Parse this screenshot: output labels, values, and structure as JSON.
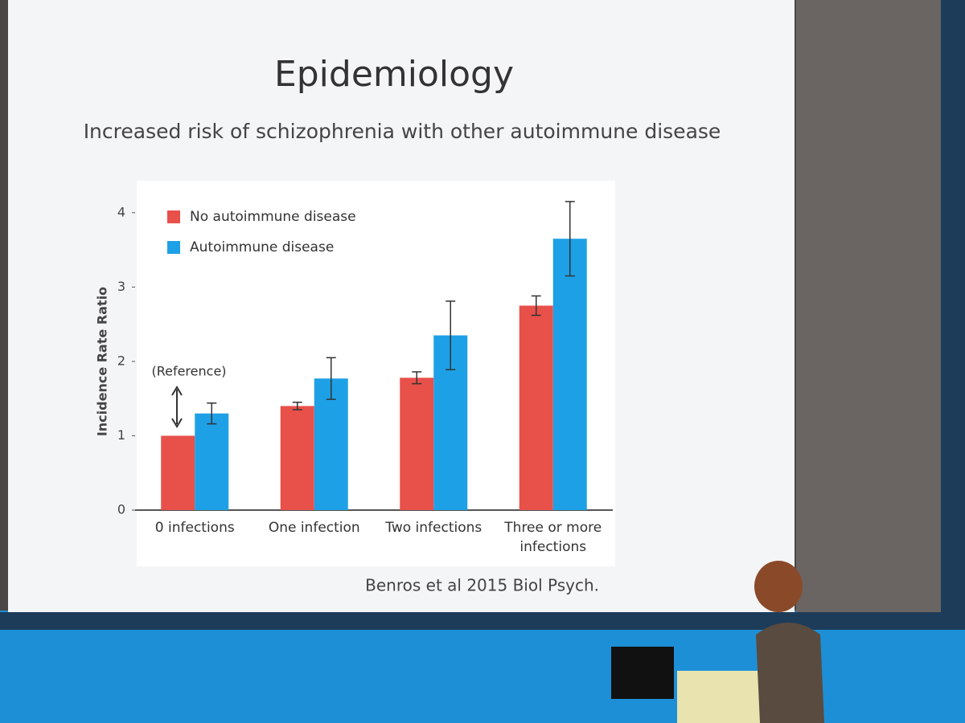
{
  "chart_data": {
    "type": "bar",
    "title": "Epidemiology",
    "subtitle": "Increased risk of schizophrenia with other autoimmune disease",
    "y_label": "Incidence Rate Ratio",
    "annotation": "(Reference)",
    "source": "Benros et al 2015 Biol Psych.",
    "categories": [
      "0 infections",
      "One infection",
      "Two infections",
      "Three or more infections"
    ],
    "series": [
      {
        "name": "No autoimmune disease",
        "color": "#e8504a",
        "values": [
          1.0,
          1.4,
          1.78,
          2.75
        ],
        "errors": [
          null,
          0.05,
          0.08,
          0.13
        ]
      },
      {
        "name": "Autoimmune disease",
        "color": "#1ea0e6",
        "values": [
          1.3,
          1.77,
          2.35,
          3.65
        ],
        "errors": [
          0.14,
          0.28,
          0.46,
          0.5
        ]
      }
    ],
    "ylim": [
      0,
      4.3
    ],
    "yticks": [
      0,
      1,
      2,
      3,
      4
    ],
    "grid": false,
    "legend": "upper left"
  }
}
